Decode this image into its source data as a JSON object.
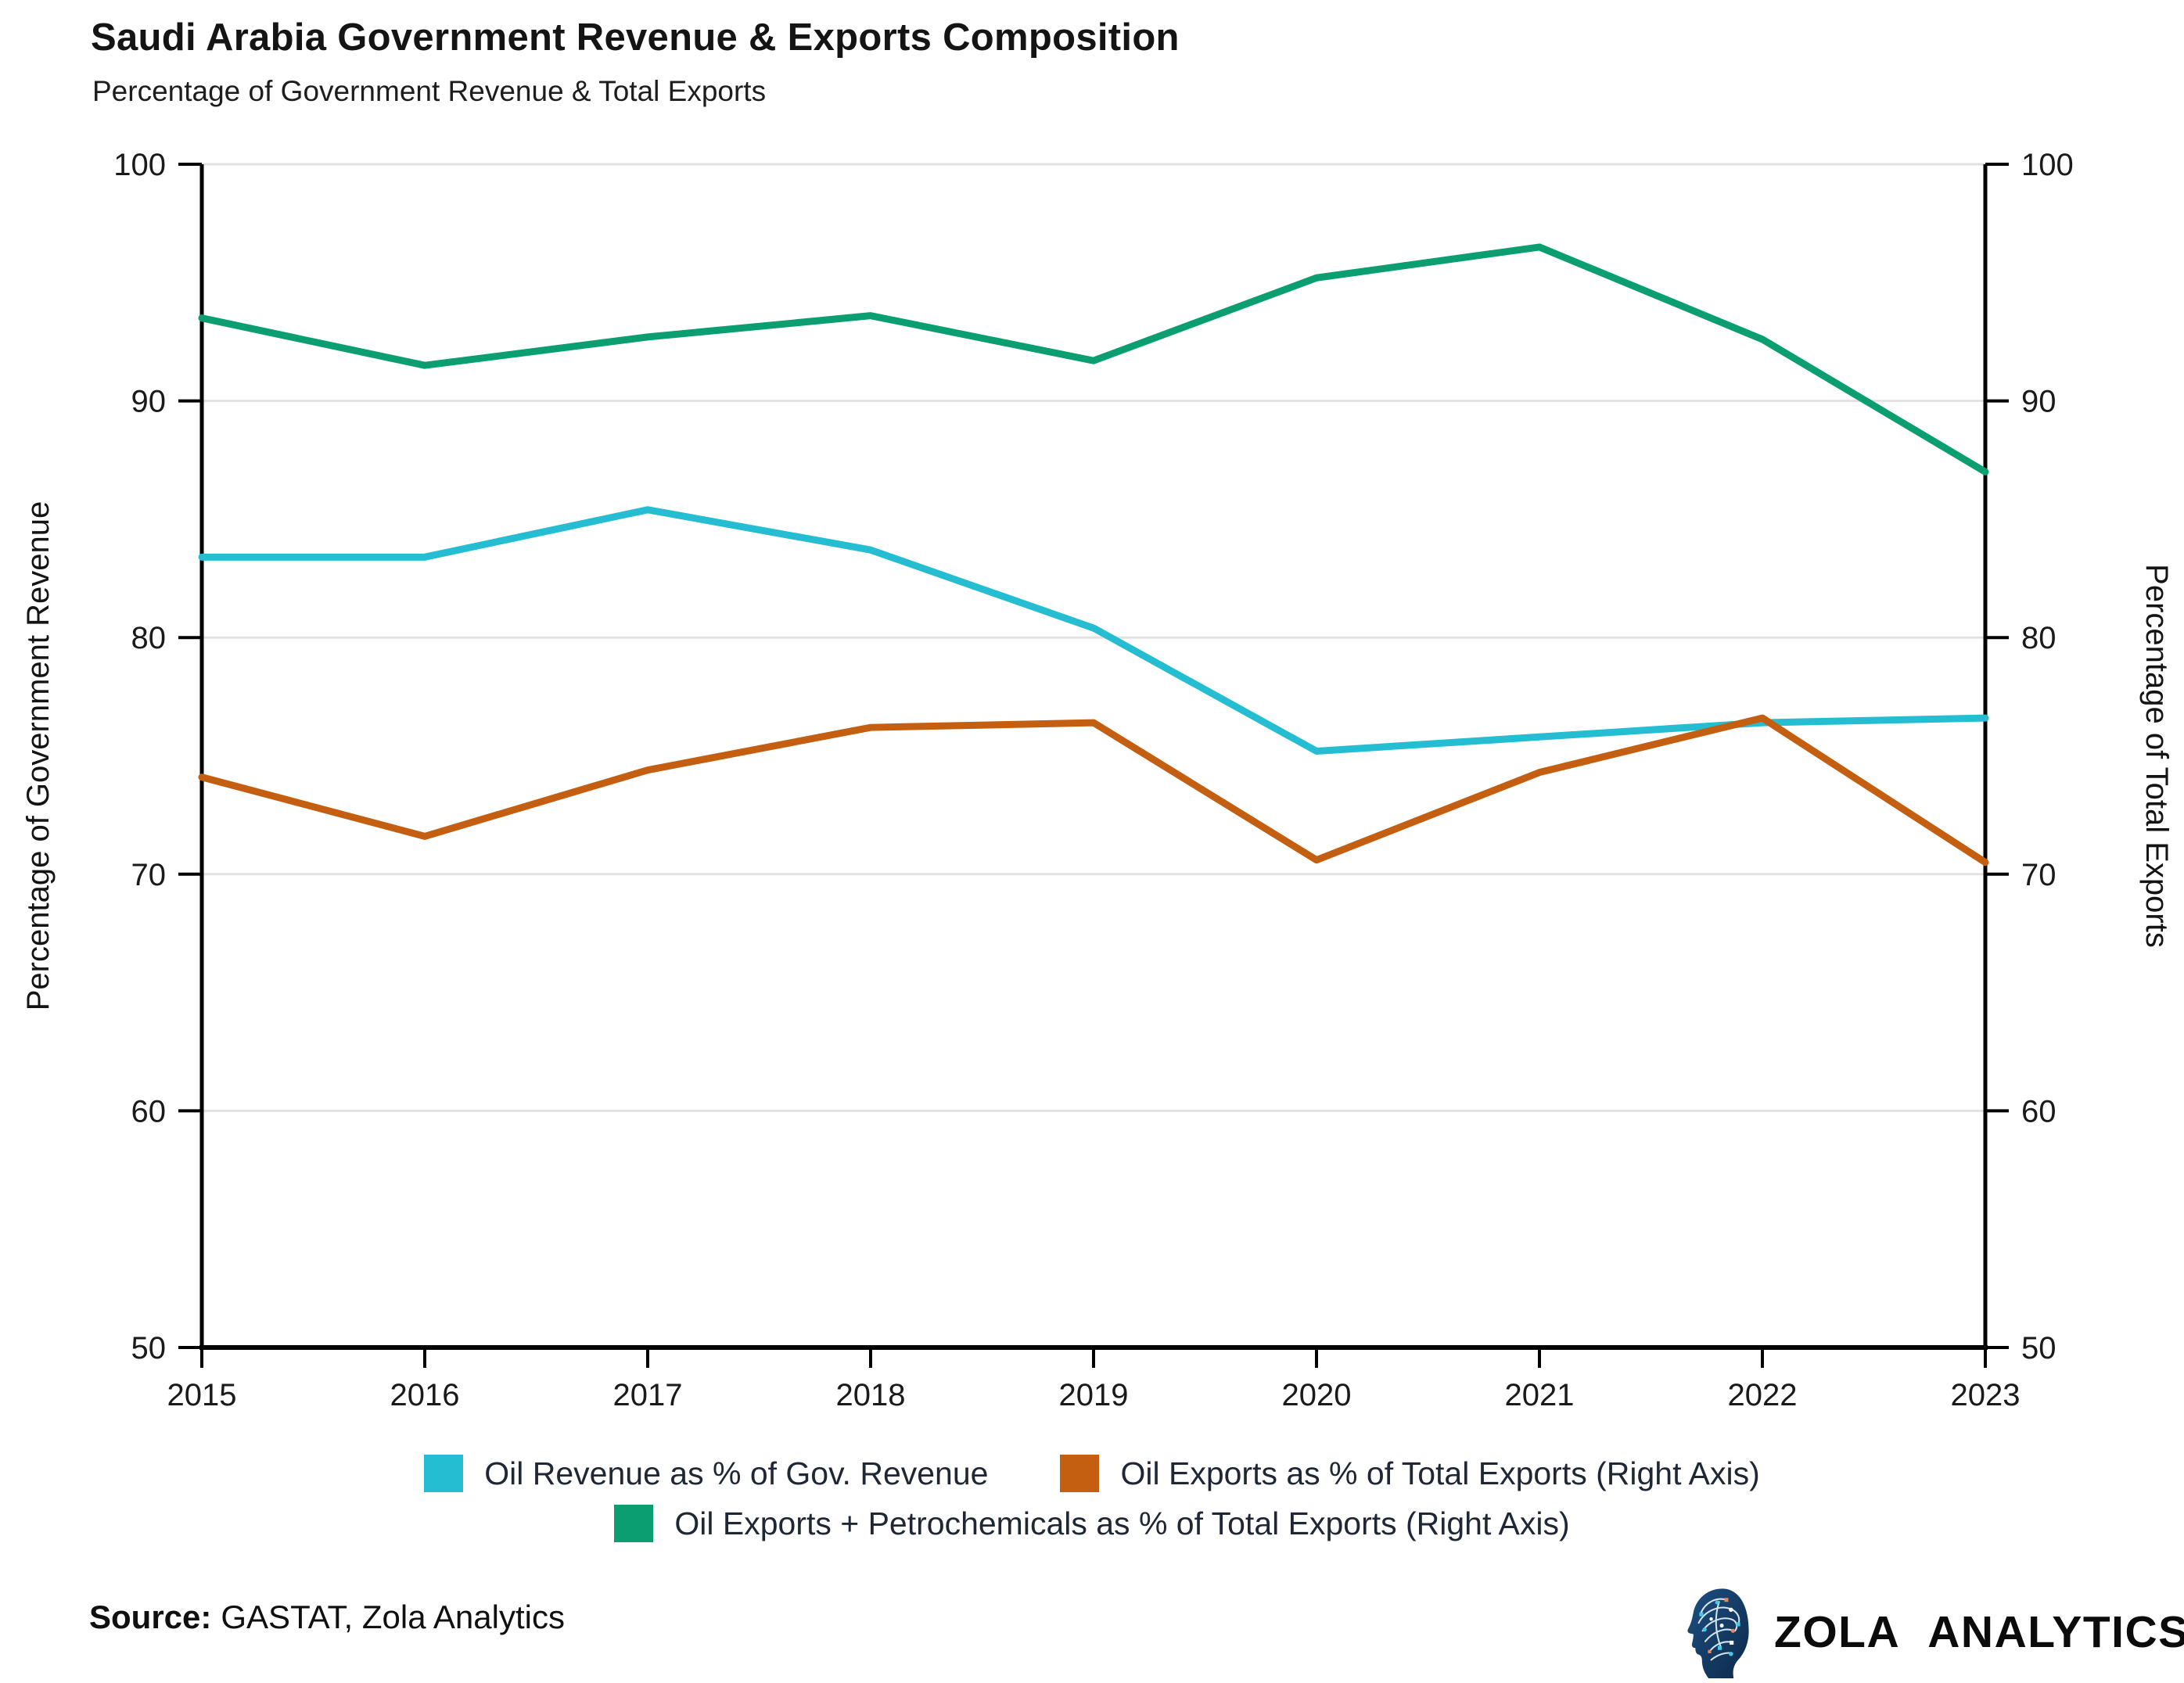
{
  "title": "Saudi Arabia Government Revenue & Exports Composition",
  "subtitle": "Percentage of Government Revenue & Total Exports",
  "chart_data": {
    "type": "line",
    "x": [
      2015,
      2016,
      2017,
      2018,
      2019,
      2020,
      2021,
      2022,
      2023
    ],
    "series": [
      {
        "name": "Oil Revenue as % of Gov. Revenue",
        "axis": "left",
        "color": "#25BDD1",
        "values": [
          83.4,
          83.4,
          85.4,
          83.7,
          80.4,
          75.2,
          75.8,
          76.4,
          76.6
        ]
      },
      {
        "name": "Oil Exports as % of Total Exports (Right Axis)",
        "axis": "right",
        "color": "#C45E10",
        "values": [
          74.1,
          71.6,
          74.4,
          76.2,
          76.4,
          70.6,
          74.3,
          76.6,
          70.5
        ]
      },
      {
        "name": "Oil Exports + Petrochemicals as % of Total Exports (Right Axis)",
        "axis": "right",
        "color": "#0A9E70",
        "values": [
          93.5,
          91.5,
          92.7,
          93.6,
          91.7,
          95.2,
          96.5,
          92.6,
          87.0
        ]
      }
    ],
    "ylabel_left": "Percentage of Government Revenue",
    "ylabel_right": "Percentage of Total Exports",
    "ylim": [
      50,
      100
    ],
    "yticks": [
      50,
      60,
      70,
      80,
      90,
      100
    ],
    "grid": true,
    "legend_position": "bottom",
    "grid_color": "#e2e2e2",
    "axis_color": "#000000"
  },
  "footer": {
    "source_label": "Source:",
    "source_text": "GASTAT, Zola Analytics"
  },
  "logo": {
    "icon": "circuit-head-icon",
    "text": "ZOLA ANALYTICS"
  }
}
